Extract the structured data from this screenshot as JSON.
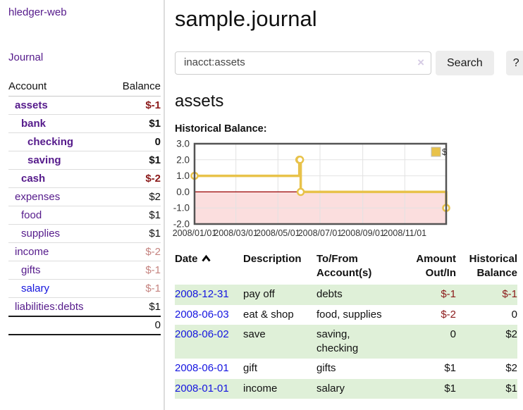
{
  "app": {
    "title": "hledger-web"
  },
  "sidebar": {
    "journal_link": "Journal",
    "accounts_header": {
      "account": "Account",
      "balance": "Balance"
    },
    "accounts": [
      {
        "name": "assets",
        "depth": 1,
        "balance": "$-1",
        "bold": true,
        "amount_color": "darkred",
        "link_color": "purple"
      },
      {
        "name": "bank",
        "depth": 2,
        "balance": "$1",
        "bold": true,
        "amount_color": "black",
        "link_color": "purple"
      },
      {
        "name": "checking",
        "depth": 3,
        "balance": "0",
        "bold": true,
        "amount_color": "black",
        "link_color": "purple"
      },
      {
        "name": "saving",
        "depth": 3,
        "balance": "$1",
        "bold": true,
        "amount_color": "black",
        "link_color": "purple"
      },
      {
        "name": "cash",
        "depth": 2,
        "balance": "$-2",
        "bold": true,
        "amount_color": "darkred",
        "link_color": "purple"
      },
      {
        "name": "expenses",
        "depth": 1,
        "balance": "$2",
        "bold": false,
        "amount_color": "black",
        "link_color": "purple"
      },
      {
        "name": "food",
        "depth": 2,
        "balance": "$1",
        "bold": false,
        "amount_color": "black",
        "link_color": "purple"
      },
      {
        "name": "supplies",
        "depth": 2,
        "balance": "$1",
        "bold": false,
        "amount_color": "black",
        "link_color": "purple"
      },
      {
        "name": "income",
        "depth": 1,
        "balance": "$-2",
        "bold": false,
        "amount_color": "fadedred",
        "link_color": "purple"
      },
      {
        "name": "gifts",
        "depth": 2,
        "balance": "$-1",
        "bold": false,
        "amount_color": "fadedred",
        "link_color": "purple"
      },
      {
        "name": "salary",
        "depth": 2,
        "balance": "$-1",
        "bold": false,
        "amount_color": "fadedred",
        "link_color": "blue"
      },
      {
        "name": "liabilities:debts",
        "depth": 1,
        "balance": "$1",
        "bold": false,
        "amount_color": "black",
        "link_color": "purple"
      }
    ],
    "total": "0"
  },
  "main": {
    "title": "sample.journal",
    "search": {
      "value": "inacct:assets",
      "clear_icon": "×",
      "button": "Search",
      "help_button": "?"
    },
    "account_heading": "assets",
    "chart_title": "Historical Balance:"
  },
  "chart_data": {
    "type": "line",
    "step": true,
    "title": "Historical Balance",
    "series": [
      {
        "name": "$",
        "points": [
          {
            "date": "2008-01-01",
            "value": 1
          },
          {
            "date": "2008-06-01",
            "value": 2
          },
          {
            "date": "2008-06-02",
            "value": 2
          },
          {
            "date": "2008-06-03",
            "value": 0
          },
          {
            "date": "2008-12-31",
            "value": -1
          }
        ]
      }
    ],
    "x_range": [
      "2008-01-01",
      "2008-12-31"
    ],
    "ylim": [
      -2,
      3
    ],
    "yticks": [
      "3.0",
      "2.0",
      "1.0",
      "0.0",
      "-1.0",
      "-2.0"
    ],
    "xticks": [
      "2008/01/01",
      "2008/03/01",
      "2008/05/01",
      "2008/07/01",
      "2008/09/01",
      "2008/11/01"
    ],
    "legend": {
      "label": "$",
      "position": "top-right"
    },
    "grid": true,
    "colors": {
      "line": "#e8c24a",
      "marker_fill": "#ffffff",
      "negative_region": "#fbdede",
      "zero_line": "#990000",
      "border": "#545454",
      "grid": "#e2e2e2",
      "tick_text": "#333333"
    }
  },
  "register": {
    "headers": {
      "date": "Date",
      "description": "Description",
      "accounts": "To/From Account(s)",
      "amount": "Amount Out/In",
      "balance": "Historical Balance"
    },
    "sort_icon": "chevron-up",
    "rows": [
      {
        "date": "2008-12-31",
        "description": "pay off",
        "accounts": "debts",
        "amount": "$-1",
        "balance": "$-1",
        "amount_neg": true,
        "balance_neg": true
      },
      {
        "date": "2008-06-03",
        "description": "eat & shop",
        "accounts": "food, supplies",
        "amount": "$-2",
        "balance": "0",
        "amount_neg": true,
        "balance_neg": false
      },
      {
        "date": "2008-06-02",
        "description": "save",
        "accounts": "saving, checking",
        "amount": "0",
        "balance": "$2",
        "amount_neg": false,
        "balance_neg": false
      },
      {
        "date": "2008-06-01",
        "description": "gift",
        "accounts": "gifts",
        "amount": "$1",
        "balance": "$2",
        "amount_neg": false,
        "balance_neg": false
      },
      {
        "date": "2008-01-01",
        "description": "income",
        "accounts": "salary",
        "amount": "$1",
        "balance": "$1",
        "amount_neg": false,
        "balance_neg": false
      }
    ]
  },
  "colors": {
    "link_purple": "#551a8b",
    "link_blue": "#1515e0",
    "negative_strong": "#8b1a1a",
    "negative_faded": "#c5837f",
    "row_stripe_green": "#dff0d8",
    "accent_gold": "#e8c24a"
  }
}
